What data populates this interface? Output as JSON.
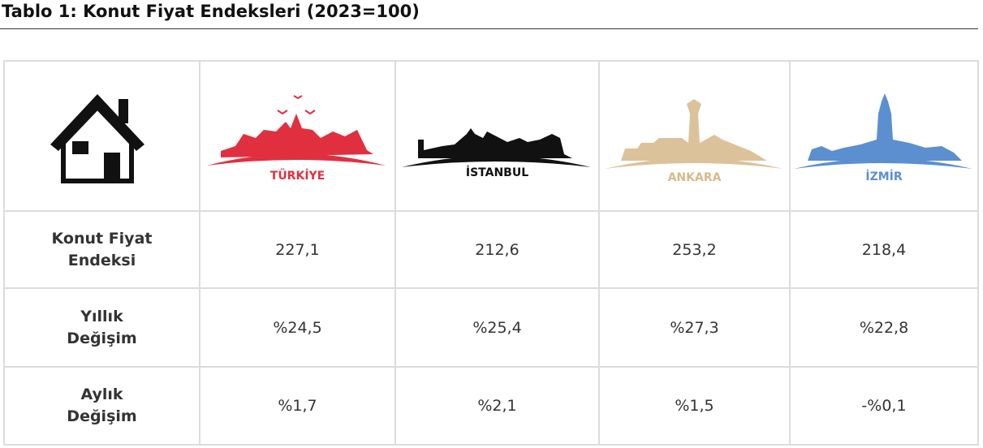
{
  "title": "Tablo 1: Konut Fiyat Endeksleri (2023=100)",
  "table": {
    "header": [
      "TÜRKİYE",
      "İSTANBUL",
      "ANKARA",
      "İZMİR"
    ],
    "rows": [
      {
        "label": [
          "Konut Fiyat",
          "Endeksi"
        ],
        "values": [
          "227,1",
          "212,6",
          "253,2",
          "218,4"
        ]
      },
      {
        "label": [
          "Yıllık",
          "Değişim"
        ],
        "values": [
          "%24,5",
          "%25,4",
          "%27,3",
          "%22,8"
        ]
      },
      {
        "label": [
          "Aylık",
          "Değişim"
        ],
        "values": [
          "%1,7",
          "%2,1",
          "%1,5",
          "-%0,1"
        ]
      }
    ]
  }
}
